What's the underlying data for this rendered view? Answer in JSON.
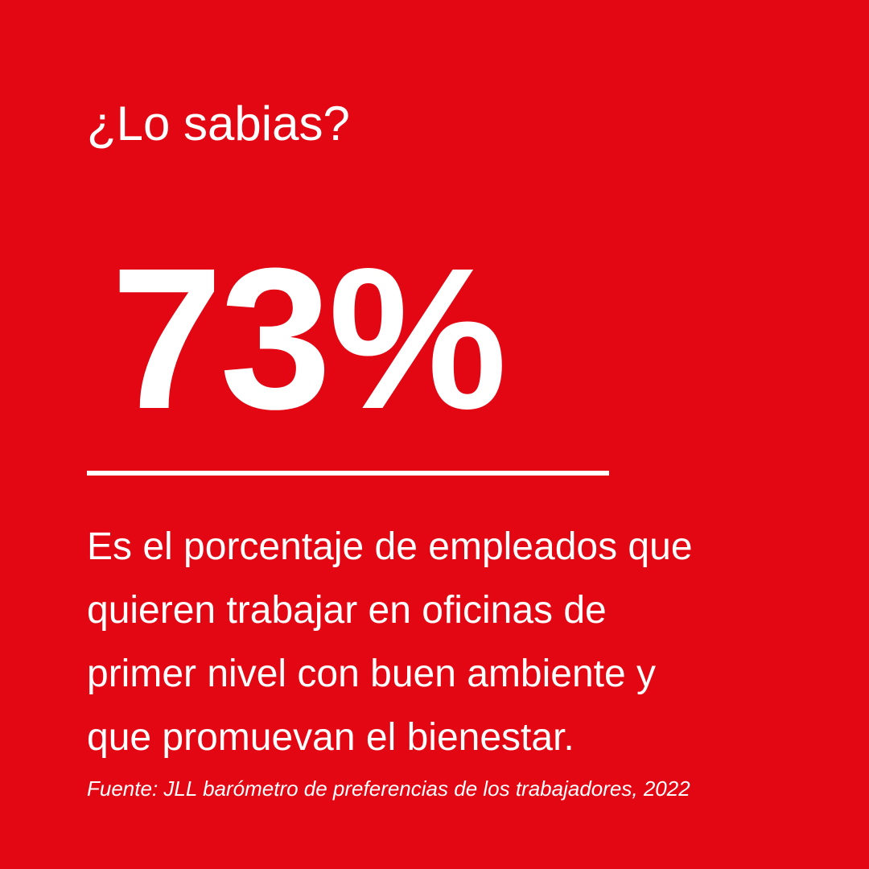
{
  "card": {
    "headline": "¿Lo sabias?",
    "stat": "73%",
    "description_lines": [
      "Es el porcentaje de empleados que",
      "quieren trabajar en oficinas de",
      "primer nivel con buen ambiente y",
      "que promuevan el bienestar."
    ],
    "source": "Fuente: JLL barómetro de preferencias de los trabajadores, 2022"
  },
  "colors": {
    "background": "#e30613",
    "text": "#ffffff"
  }
}
